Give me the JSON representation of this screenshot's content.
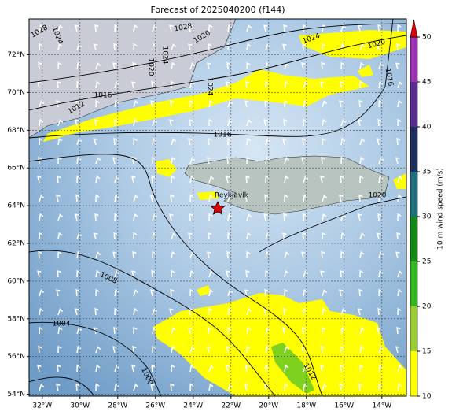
{
  "map": {
    "title": "Forecast of 2025040200 (f144)",
    "xlim": [
      -32.7,
      -12.7
    ],
    "ylim": [
      53.9,
      73.9
    ],
    "xticks": [
      {
        "value": -32,
        "label": "32°W"
      },
      {
        "value": -30,
        "label": "30°W"
      },
      {
        "value": -28,
        "label": "28°W"
      },
      {
        "value": -26,
        "label": "26°W"
      },
      {
        "value": -24,
        "label": "24°W"
      },
      {
        "value": -22,
        "label": "22°W"
      },
      {
        "value": -20,
        "label": "20°W"
      },
      {
        "value": -18,
        "label": "18°W"
      },
      {
        "value": -16,
        "label": "16°W"
      },
      {
        "value": -14,
        "label": "14°W"
      }
    ],
    "yticks": [
      {
        "value": 54,
        "label": "54°N"
      },
      {
        "value": 56,
        "label": "56°N"
      },
      {
        "value": 58,
        "label": "58°N"
      },
      {
        "value": 60,
        "label": "60°N"
      },
      {
        "value": 62,
        "label": "62°N"
      },
      {
        "value": 64,
        "label": "64°N"
      },
      {
        "value": 66,
        "label": "66°N"
      },
      {
        "value": 68,
        "label": "68°N"
      },
      {
        "value": 70,
        "label": "70°N"
      },
      {
        "value": 72,
        "label": "72°N"
      }
    ],
    "grid": true,
    "place_label": "Reykjavík",
    "isobar_labels": [
      1028,
      1024,
      1028,
      1020,
      1024,
      1020,
      1024,
      1016,
      1012,
      1024,
      1020,
      1016,
      1016,
      1020,
      1008,
      1004,
      1000,
      1012
    ],
    "colorbar": {
      "label": "10 m wind speed (m/s)",
      "ticks": [
        10,
        15,
        20,
        25,
        30,
        35,
        40,
        45,
        50
      ],
      "colors": [
        "#ffff00",
        "#9acd32",
        "#32b41e",
        "#138a13",
        "#1f6e7e",
        "#1c2f5e",
        "#5a2d91",
        "#9b30b0"
      ],
      "extend_color": "#e00000"
    }
  }
}
